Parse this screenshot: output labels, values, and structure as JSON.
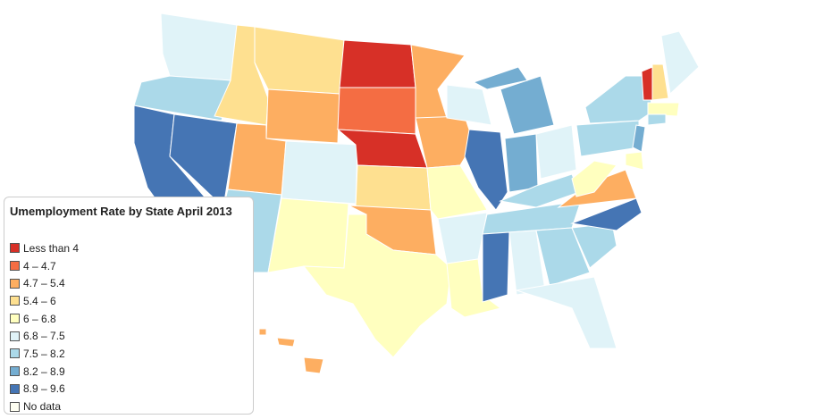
{
  "title": "Umemployment Rate by State April 2013",
  "legend": [
    {
      "label": "Less than 4",
      "color": "#d73027"
    },
    {
      "label": "4 – 4.7",
      "color": "#f46d43"
    },
    {
      "label": "4.7 – 5.4",
      "color": "#fdae61"
    },
    {
      "label": "5.4 – 6",
      "color": "#fee090"
    },
    {
      "label": "6 – 6.8",
      "color": "#ffffbf"
    },
    {
      "label": "6.8 – 7.5",
      "color": "#e0f3f8"
    },
    {
      "label": "7.5 – 8.2",
      "color": "#abd9e9"
    },
    {
      "label": "8.2 – 8.9",
      "color": "#74add1"
    },
    {
      "label": "8.9 – 9.6",
      "color": "#4575b4"
    },
    {
      "label": "No data",
      "color": "#fffff2"
    }
  ],
  "regions": [
    5,
    6,
    8,
    8,
    3,
    3,
    2,
    2,
    6,
    5,
    4,
    0,
    1,
    0,
    3,
    2,
    4,
    2,
    2,
    4,
    5,
    4,
    5,
    8,
    7,
    7,
    7,
    5,
    6,
    6,
    8,
    5,
    6,
    5,
    6,
    8,
    2,
    4,
    6,
    6,
    7,
    4,
    0,
    3,
    5,
    4,
    6,
    2,
    2,
    2
  ]
}
